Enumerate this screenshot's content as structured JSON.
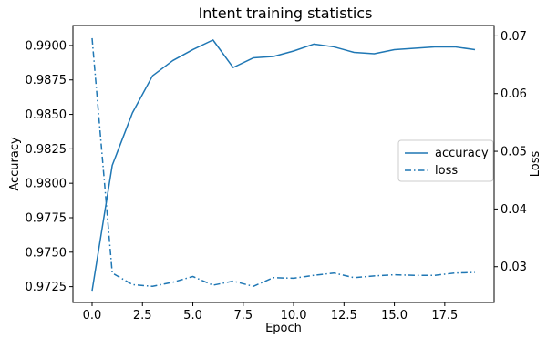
{
  "chart_data": {
    "type": "line",
    "title": "Intent training statistics",
    "xlabel": "Epoch",
    "ylabel": "Accuracy",
    "y2label": "Loss",
    "xlim": [
      -0.95,
      19.95
    ],
    "ylim": [
      0.97135,
      0.99145
    ],
    "y2lim": [
      0.0238,
      0.0718
    ],
    "x_ticks": [
      0.0,
      2.5,
      5.0,
      7.5,
      10.0,
      12.5,
      15.0,
      17.5
    ],
    "x_tick_labels": [
      "0.0",
      "2.5",
      "5.0",
      "7.5",
      "10.0",
      "12.5",
      "15.0",
      "17.5"
    ],
    "y_ticks": [
      0.9725,
      0.975,
      0.9775,
      0.98,
      0.9825,
      0.985,
      0.9875,
      0.99
    ],
    "y_tick_labels": [
      "0.9725",
      "0.9750",
      "0.9775",
      "0.9800",
      "0.9825",
      "0.9850",
      "0.9875",
      "0.9900"
    ],
    "y2_ticks": [
      0.03,
      0.04,
      0.05,
      0.06,
      0.07
    ],
    "y2_tick_labels": [
      "0.03",
      "0.04",
      "0.05",
      "0.06",
      "0.07"
    ],
    "grid": false,
    "legend_position": "center-right",
    "color": "#1f77b4",
    "x": [
      0,
      1,
      2,
      3,
      4,
      5,
      6,
      7,
      8,
      9,
      10,
      11,
      12,
      13,
      14,
      15,
      16,
      17,
      18,
      19
    ],
    "series": [
      {
        "name": "accuracy",
        "axis": "left",
        "style": "solid",
        "values": [
          0.9722,
          0.9813,
          0.9851,
          0.9878,
          0.9889,
          0.9897,
          0.9904,
          0.9884,
          0.9891,
          0.9892,
          0.9896,
          0.9901,
          0.9899,
          0.9895,
          0.9894,
          0.9897,
          0.9898,
          0.9899,
          0.9899,
          0.9897
        ]
      },
      {
        "name": "loss",
        "axis": "right",
        "style": "dashdot",
        "values": [
          0.0696,
          0.0289,
          0.0269,
          0.0266,
          0.0273,
          0.0283,
          0.0268,
          0.0275,
          0.0266,
          0.0281,
          0.028,
          0.0285,
          0.0289,
          0.0281,
          0.0284,
          0.0286,
          0.0285,
          0.0285,
          0.0289,
          0.029
        ]
      }
    ]
  }
}
